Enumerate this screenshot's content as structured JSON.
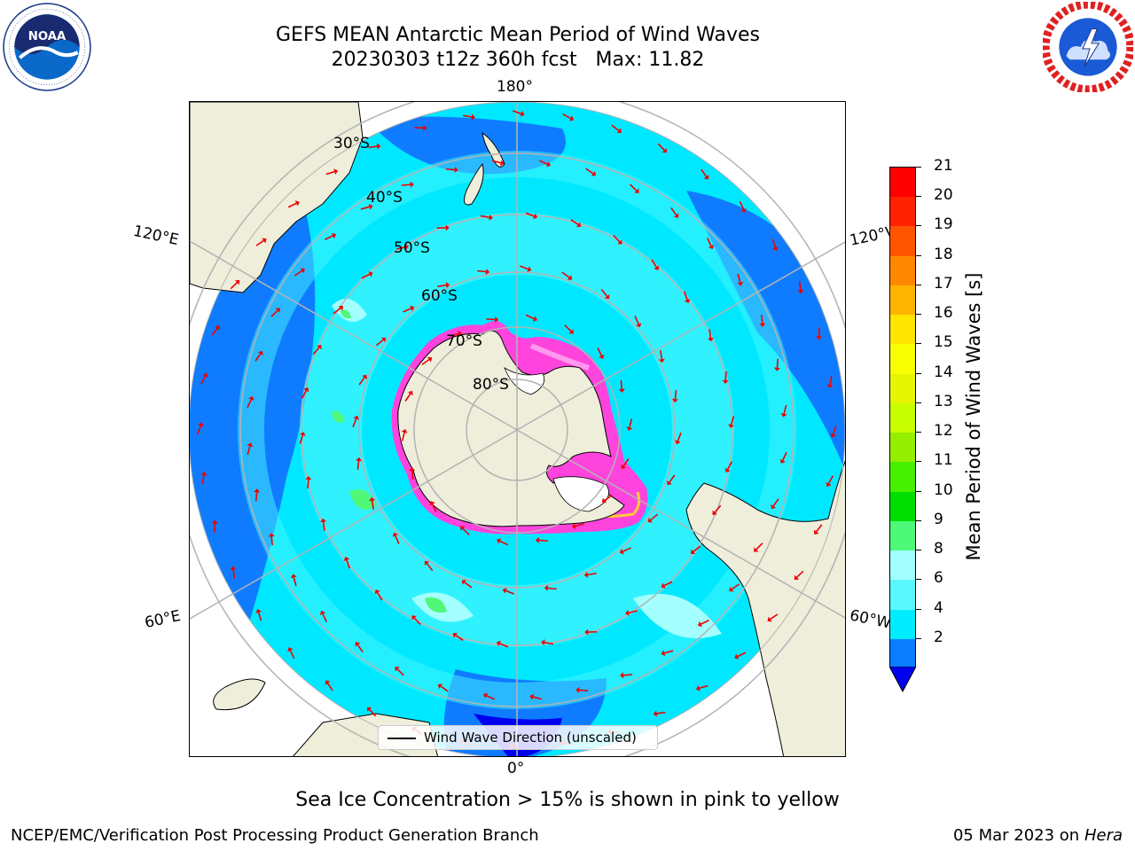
{
  "title": {
    "line1": "GEFS MEAN Antarctic Mean Period of Wind Waves",
    "line2": "20230303 t12z 360h fcst   Max: 11.82"
  },
  "logos": {
    "noaa_text": "NOAA",
    "noaa_ring": "NATIONAL OCEANIC AND ATMOSPHERIC ADMINISTRATION · U.S. DEPARTMENT OF COMMERCE",
    "nws_ring": "NATIONAL WEATHER SERVICE"
  },
  "map": {
    "projection": "south-polar-stereographic",
    "longitude_labels": {
      "top": "180°",
      "bottom": "0°",
      "upper_left": "120°E",
      "upper_right": "120°W",
      "lower_left": "60°E",
      "lower_right": "60°W"
    },
    "latitude_labels": [
      "30°S",
      "40°S",
      "50°S",
      "60°S",
      "70°S",
      "80°S"
    ],
    "ocean_colors": {
      "period_2_4": "#0f7cff",
      "period_4_6": "#00e8ff",
      "period_6_8": "#45f6ff",
      "period_8_9": "#a4ffff",
      "period_9_10": "#50f878"
    },
    "land_color": "#efeedb",
    "sea_ice_colors": [
      "#ff44dd",
      "#ff99ee",
      "#ffcc33"
    ],
    "arrow_color": "#ee0000",
    "legend_label": "Wind Wave Direction (unscaled)"
  },
  "colorbar": {
    "title": "Mean Period of Wind Waves [s]",
    "tick_labels": [
      "21",
      "20",
      "19",
      "18",
      "17",
      "16",
      "15",
      "14",
      "13",
      "12",
      "11",
      "10",
      "9",
      "8",
      "6",
      "4",
      "2"
    ],
    "segment_colors": [
      "#ff0000",
      "#ff2200",
      "#ff5500",
      "#ff8800",
      "#ffb400",
      "#ffe600",
      "#f7ff00",
      "#e6f500",
      "#c8ff00",
      "#96ee00",
      "#46f000",
      "#00dd00",
      "#4ef979",
      "#a3ffff",
      "#5af7ff",
      "#00ecff",
      "#0a7dff"
    ],
    "extend_color": "#0000ee"
  },
  "ice_note": "Sea Ice Concentration > 15% is shown in pink to yellow",
  "footer": {
    "left": "NCEP/EMC/Verification Post Processing Product Generation Branch",
    "right_date": "05 Mar 2023 on",
    "right_host": "Hera"
  }
}
